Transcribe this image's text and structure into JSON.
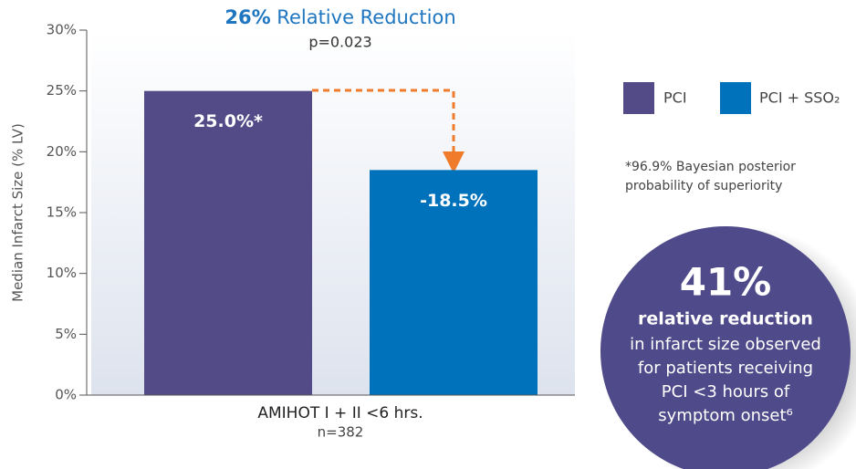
{
  "chart_data": {
    "type": "bar",
    "title_emphasis": "26%",
    "title": "Relative Reduction",
    "subtitle": "p=0.023",
    "y_label": "Median Infarct Size (% LV)",
    "categories": [
      "AMIHOT I + II <6 hrs."
    ],
    "category_sublabels": [
      "n=382"
    ],
    "series": [
      {
        "name": "PCI",
        "color": "#524b87",
        "values": [
          25.0
        ],
        "value_labels": [
          "25.0%*"
        ]
      },
      {
        "name": "PCI + SSO₂",
        "color": "#0072bb",
        "values": [
          18.5
        ],
        "value_labels": [
          "-18.5%"
        ]
      }
    ],
    "ylim": [
      0,
      30
    ],
    "yticks": [
      {
        "value": 0,
        "label": "0%"
      },
      {
        "value": 5,
        "label": "5%"
      },
      {
        "value": 10,
        "label": "10%"
      },
      {
        "value": 15,
        "label": "15%"
      },
      {
        "value": 20,
        "label": "20%"
      },
      {
        "value": 25,
        "label": "25%"
      },
      {
        "value": 30,
        "label": "30%"
      }
    ],
    "legend": "right",
    "footnote": [
      "*96.9% Bayesian posterior",
      "probability of superiority"
    ],
    "callout": {
      "headline": "41%",
      "emphasis": "relative reduction",
      "lines": [
        "in infarct size observed",
        "for patients receiving",
        "PCI <3 hours of",
        "symptom onset⁶"
      ]
    }
  }
}
